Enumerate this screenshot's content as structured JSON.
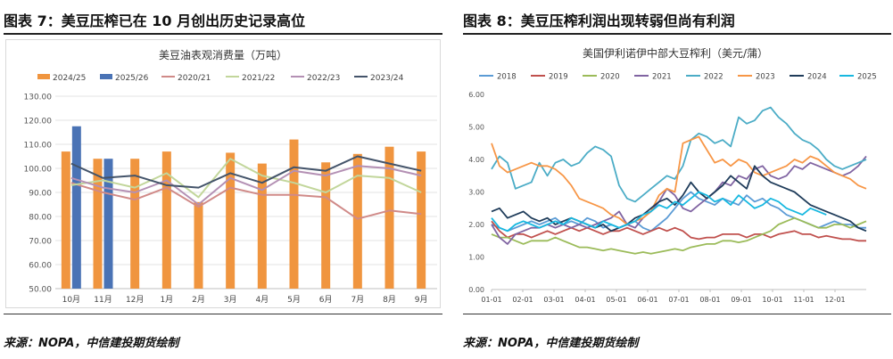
{
  "left_panel": {
    "heading": "图表 7：美豆压榨已在 10 月创出历史记录高位",
    "source": "来源：NOPA，中信建投期货绘制"
  },
  "right_panel": {
    "heading": "图表 8：美豆压榨利润出现转弱但尚有利润",
    "source": "来源：NOPA，中信建投期货绘制"
  },
  "chart_data": [
    {
      "type": "bar",
      "title": "美豆油表观消费量（万吨）",
      "categories": [
        "10月",
        "11月",
        "12月",
        "1月",
        "2月",
        "3月",
        "4月",
        "5月",
        "6月",
        "7月",
        "8月",
        "9月"
      ],
      "ylim": [
        50,
        130
      ],
      "yticks": [
        "50.00",
        "60.00",
        "70.00",
        "80.00",
        "90.00",
        "100.00",
        "110.00",
        "120.00",
        "130.00"
      ],
      "grid": true,
      "legend_position": "top",
      "bar_series": [
        {
          "name": "2024/25",
          "color": "#f0953f",
          "values": [
            107,
            104,
            104,
            107,
            86,
            106.5,
            102,
            112,
            102.5,
            106,
            109,
            107
          ]
        },
        {
          "name": "2025/26",
          "color": "#4a73b5",
          "values": [
            117.5,
            104,
            null,
            null,
            null,
            null,
            null,
            null,
            null,
            null,
            null,
            null
          ]
        }
      ],
      "line_series": [
        {
          "name": "2020/21",
          "color": "#d08a88",
          "values": [
            94,
            90,
            87,
            92,
            84,
            92,
            89,
            89,
            88,
            79,
            82.5,
            81
          ]
        },
        {
          "name": "2021/22",
          "color": "#c2d69b",
          "values": [
            93,
            95,
            92,
            98,
            88,
            104,
            97,
            94,
            90,
            97,
            96,
            90
          ]
        },
        {
          "name": "2022/23",
          "color": "#b490b4",
          "values": [
            96,
            92,
            90,
            95,
            85,
            96,
            91,
            99,
            97,
            101,
            100,
            97
          ]
        },
        {
          "name": "2023/24",
          "color": "#44546a",
          "values": [
            102,
            96,
            97,
            93,
            92,
            98,
            94,
            100.5,
            99,
            105,
            102,
            99
          ]
        }
      ]
    },
    {
      "type": "line",
      "title": "美国伊利诺伊中部大豆榨利（美元/蒲）",
      "x_ticks": [
        "01-01",
        "02-01",
        "03-01",
        "04-01",
        "05-01",
        "06-01",
        "07-01",
        "08-01",
        "09-01",
        "10-01",
        "11-01",
        "12-01"
      ],
      "ylim": [
        0,
        6
      ],
      "yticks": [
        "0.00",
        "1.00",
        "2.00",
        "3.00",
        "4.00",
        "5.00",
        "6.00"
      ],
      "grid": false,
      "legend_position": "top",
      "series": [
        {
          "name": "2018",
          "color": "#5b9bd5",
          "values": [
            2.0,
            1.9,
            1.8,
            1.9,
            2.0,
            2.1,
            2.0,
            2.1,
            2.2,
            2.0,
            2.1,
            2.0,
            2.2,
            2.1,
            1.9,
            2.0,
            1.9,
            2.0,
            2.1,
            1.9,
            1.8,
            2.0,
            2.2,
            2.5,
            2.8,
            3.0,
            2.8,
            2.7,
            2.6,
            2.8,
            2.7,
            2.6,
            2.9,
            2.7,
            2.8,
            2.6,
            2.5,
            2.3,
            2.2,
            2.1,
            2.0,
            1.9,
            2.0,
            2.1,
            2.0,
            2.0,
            1.9,
            1.9
          ]
        },
        {
          "name": "2019",
          "color": "#c0504d",
          "values": [
            2.1,
            1.8,
            1.6,
            1.7,
            1.7,
            1.6,
            1.7,
            1.8,
            1.7,
            1.8,
            1.9,
            1.8,
            1.9,
            1.8,
            1.7,
            1.8,
            1.8,
            1.9,
            1.8,
            1.7,
            1.8,
            1.9,
            1.8,
            1.9,
            1.8,
            1.6,
            1.55,
            1.6,
            1.6,
            1.7,
            1.7,
            1.7,
            1.6,
            1.7,
            1.7,
            1.6,
            1.7,
            1.75,
            1.8,
            1.7,
            1.7,
            1.6,
            1.65,
            1.6,
            1.55,
            1.55,
            1.5,
            1.5
          ]
        },
        {
          "name": "2020",
          "color": "#9bbb59",
          "values": [
            1.7,
            1.6,
            1.6,
            1.5,
            1.4,
            1.5,
            1.5,
            1.5,
            1.6,
            1.5,
            1.4,
            1.3,
            1.3,
            1.25,
            1.2,
            1.25,
            1.2,
            1.15,
            1.1,
            1.15,
            1.1,
            1.15,
            1.2,
            1.25,
            1.2,
            1.3,
            1.35,
            1.4,
            1.4,
            1.5,
            1.5,
            1.45,
            1.5,
            1.6,
            1.7,
            1.8,
            2.0,
            2.1,
            2.2,
            2.1,
            2.0,
            1.9,
            1.9,
            2.0,
            2.0,
            1.9,
            2.0,
            2.1
          ]
        },
        {
          "name": "2021",
          "color": "#8064a2",
          "values": [
            2.0,
            1.6,
            1.4,
            1.7,
            1.8,
            1.9,
            1.9,
            2.0,
            1.9,
            2.0,
            1.9,
            2.0,
            1.9,
            2.0,
            2.1,
            2.2,
            2.4,
            2.0,
            1.9,
            2.2,
            2.4,
            2.7,
            3.1,
            2.9,
            2.5,
            2.4,
            2.6,
            2.8,
            3.0,
            3.3,
            3.2,
            3.5,
            3.4,
            3.7,
            3.8,
            3.5,
            3.4,
            3.5,
            3.8,
            3.7,
            3.9,
            3.8,
            3.7,
            3.6,
            3.5,
            3.6,
            3.8,
            4.1
          ]
        },
        {
          "name": "2022",
          "color": "#4bacc6",
          "values": [
            3.7,
            4.1,
            3.9,
            3.1,
            3.2,
            3.3,
            3.9,
            3.5,
            3.9,
            4.0,
            3.8,
            3.9,
            4.2,
            4.4,
            4.3,
            4.1,
            3.2,
            2.8,
            2.7,
            2.9,
            3.1,
            3.3,
            3.5,
            3.4,
            3.8,
            4.6,
            4.8,
            4.7,
            4.5,
            4.6,
            4.4,
            5.3,
            5.1,
            5.2,
            5.5,
            5.6,
            5.3,
            5.1,
            4.8,
            4.6,
            4.5,
            4.3,
            4.0,
            3.8,
            3.7,
            3.8,
            3.9,
            4.0
          ]
        },
        {
          "name": "2023",
          "color": "#f79646",
          "values": [
            4.5,
            3.8,
            3.6,
            3.7,
            3.8,
            3.9,
            3.8,
            3.8,
            3.7,
            3.5,
            3.2,
            2.8,
            2.7,
            2.6,
            2.5,
            2.3,
            2.2,
            2.0,
            2.1,
            2.2,
            2.4,
            2.9,
            3.1,
            3.0,
            4.5,
            4.6,
            4.7,
            4.3,
            3.9,
            4.0,
            3.8,
            4.0,
            3.9,
            3.6,
            3.5,
            3.6,
            3.7,
            3.8,
            4.0,
            3.9,
            4.1,
            4.0,
            3.8,
            3.6,
            3.5,
            3.4,
            3.2,
            3.1
          ]
        },
        {
          "name": "2024",
          "color": "#1f3c5a",
          "values": [
            2.4,
            2.5,
            2.2,
            2.3,
            2.4,
            2.2,
            2.1,
            2.2,
            2.0,
            2.1,
            2.2,
            2.1,
            2.0,
            1.9,
            2.0,
            1.8,
            1.9,
            2.0,
            2.2,
            2.3,
            2.5,
            2.7,
            2.8,
            2.6,
            2.9,
            3.3,
            3.0,
            2.8,
            3.0,
            3.2,
            3.5,
            3.3,
            3.1,
            3.8,
            3.5,
            3.3,
            3.2,
            3.1,
            3.0,
            2.8,
            2.6,
            2.5,
            2.4,
            2.3,
            2.2,
            2.1,
            1.9,
            1.8
          ]
        },
        {
          "name": "2025",
          "color": "#17b8e0",
          "values": [
            2.2,
            1.9,
            1.8,
            2.0,
            2.1,
            2.0,
            1.9,
            2.0,
            2.1,
            2.0,
            2.2,
            2.1,
            2.0,
            1.9,
            2.1,
            2.0,
            1.9,
            2.0,
            2.1,
            2.3,
            2.4,
            2.6,
            2.5,
            2.7,
            2.6,
            2.8,
            3.0,
            2.9,
            2.7,
            2.8,
            2.6,
            2.9,
            2.7,
            2.5,
            2.6,
            2.8,
            2.7,
            2.5,
            2.4,
            2.3,
            2.5,
            2.4,
            2.3,
            null,
            null,
            null,
            null,
            null
          ]
        }
      ]
    }
  ]
}
